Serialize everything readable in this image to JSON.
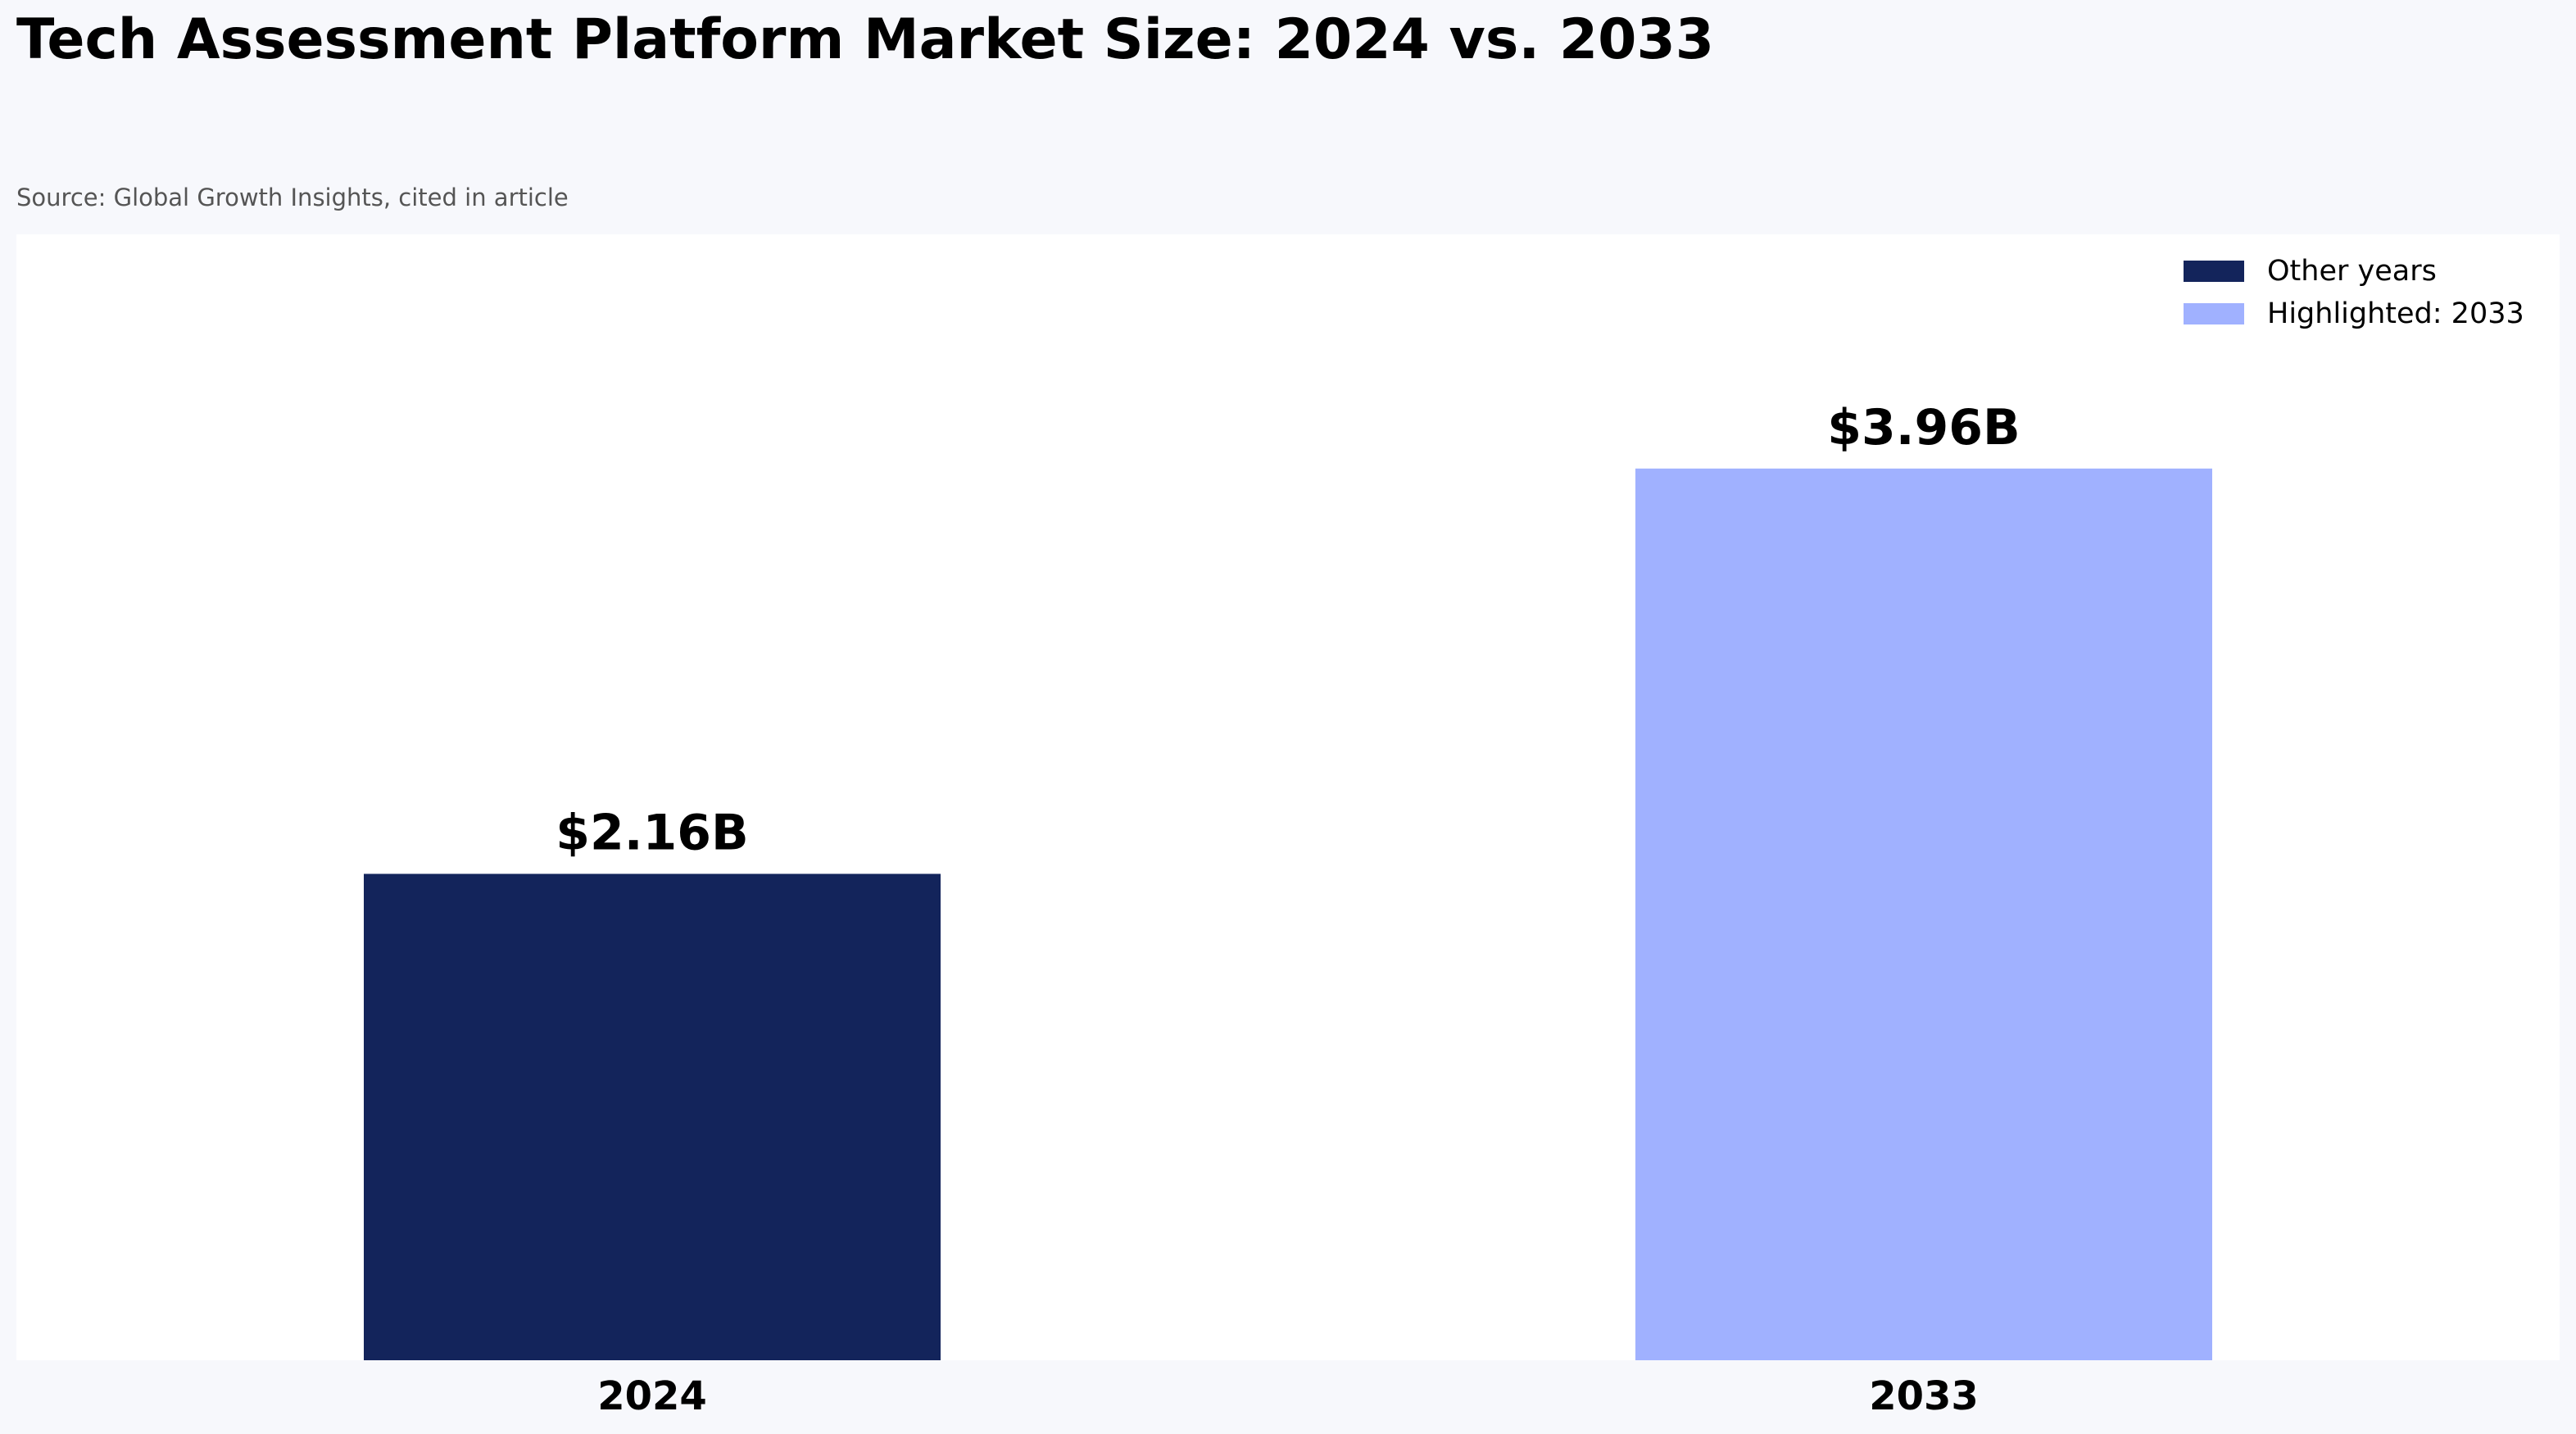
{
  "chart_data": {
    "type": "bar",
    "title": "Tech Assessment Platform Market Size: 2024 vs. 2033",
    "subtitle": "Source: Global Growth Insights, cited in article",
    "xlabel": "",
    "ylabel": "",
    "categories": [
      "2024",
      "2033"
    ],
    "values": [
      2.16,
      3.96
    ],
    "value_labels": [
      "$2.16B",
      "$3.96B"
    ],
    "ylim": [
      0,
      5.0
    ],
    "grid": false,
    "legend": {
      "placement": "top-right",
      "entries": [
        {
          "label": "Other years",
          "color": "#13245B"
        },
        {
          "label": "Highlighted: 2033",
          "color": "#A0B1FF"
        }
      ]
    },
    "bar_colors": [
      "#13245B",
      "#A0B1FF"
    ],
    "highlighted_category": "2033"
  },
  "colors": {
    "page_background": "#F7F8FC",
    "plot_background": "#FFFFFF"
  }
}
